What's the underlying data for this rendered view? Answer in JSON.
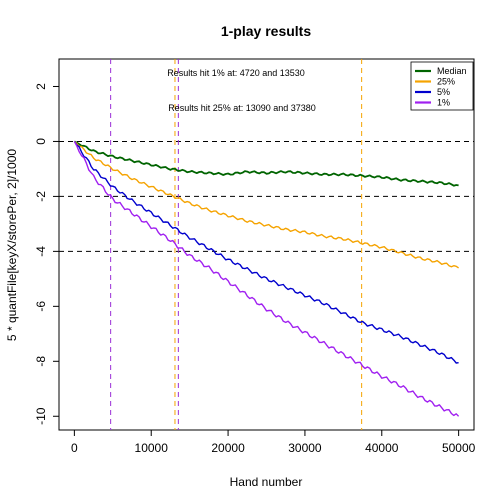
{
  "chart_data": {
    "type": "line",
    "title": "1-play results",
    "xlabel": "Hand number",
    "ylabel": "5 * quantFile[keyX/storePer, 2]/1000",
    "xlim": [
      -2000,
      52000
    ],
    "ylim": [
      -10.5,
      3.0
    ],
    "x_ticks": [
      0,
      10000,
      20000,
      30000,
      40000,
      50000
    ],
    "x_tick_labels": [
      "0",
      "10000",
      "20000",
      "30000",
      "40000",
      "50000"
    ],
    "y_ticks": [
      2,
      0,
      -2,
      -4,
      -6,
      -8,
      -10
    ],
    "y_tick_labels": [
      "2",
      "0",
      "-2",
      "-4",
      "-6",
      "-8",
      "-10"
    ],
    "grid": false,
    "legend_position": "top-right",
    "annotations": [
      {
        "text": "Results hit 1% at: 4720 and 13530"
      },
      {
        "text": "Results hit 25% at: 13090 and 37380"
      }
    ],
    "hlines": [
      {
        "y": 0,
        "style": "dashed",
        "color": "#000000"
      },
      {
        "y": -2,
        "style": "dashed",
        "color": "#000000"
      },
      {
        "y": -4,
        "style": "dashed",
        "color": "#000000"
      }
    ],
    "vlines": [
      {
        "x": 4720,
        "style": "dashed",
        "color": "#9b30d6"
      },
      {
        "x": 13530,
        "style": "dashed",
        "color": "#9b30d6"
      },
      {
        "x": 13090,
        "style": "dashed",
        "color": "#f5a300"
      },
      {
        "x": 37380,
        "style": "dashed",
        "color": "#f5a300"
      }
    ],
    "x": [
      0,
      2500,
      5000,
      7500,
      10000,
      12500,
      15000,
      17500,
      20000,
      22500,
      25000,
      27500,
      30000,
      32500,
      35000,
      37500,
      40000,
      42500,
      45000,
      47500,
      50000
    ],
    "series": [
      {
        "name": "Median",
        "color": "#006400",
        "values": [
          0,
          -0.35,
          -0.55,
          -0.7,
          -0.85,
          -1.0,
          -1.1,
          -1.15,
          -1.2,
          -1.1,
          -1.15,
          -1.1,
          -1.15,
          -1.2,
          -1.2,
          -1.25,
          -1.3,
          -1.4,
          -1.45,
          -1.5,
          -1.6
        ]
      },
      {
        "name": "25%",
        "color": "#f5a300",
        "values": [
          0,
          -0.6,
          -1.0,
          -1.35,
          -1.65,
          -1.95,
          -2.25,
          -2.5,
          -2.7,
          -2.9,
          -3.05,
          -3.2,
          -3.3,
          -3.45,
          -3.55,
          -3.7,
          -3.85,
          -4.05,
          -4.25,
          -4.4,
          -4.6
        ]
      },
      {
        "name": "5%",
        "color": "#0000cd",
        "values": [
          0,
          -1.0,
          -1.65,
          -2.15,
          -2.6,
          -3.05,
          -3.5,
          -3.9,
          -4.3,
          -4.65,
          -5.0,
          -5.3,
          -5.6,
          -5.9,
          -6.25,
          -6.6,
          -6.85,
          -7.1,
          -7.4,
          -7.7,
          -8.05
        ]
      },
      {
        "name": "1%",
        "color": "#a020f0",
        "values": [
          0,
          -1.3,
          -2.1,
          -2.6,
          -3.1,
          -3.6,
          -4.15,
          -4.6,
          -5.1,
          -5.6,
          -6.1,
          -6.55,
          -6.95,
          -7.35,
          -7.75,
          -8.15,
          -8.55,
          -8.9,
          -9.3,
          -9.65,
          -10.0
        ]
      }
    ]
  }
}
